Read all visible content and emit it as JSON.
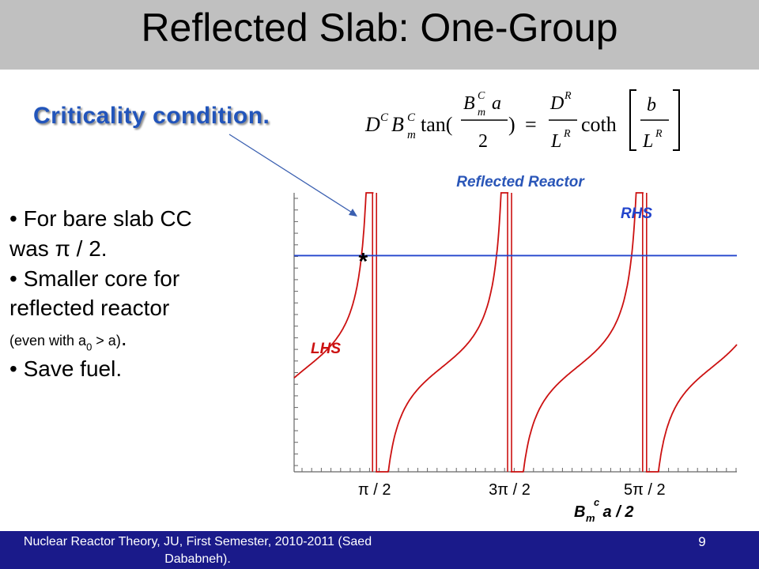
{
  "slide": {
    "title": "Reflected Slab: One-Group",
    "criticality_label": "Criticality condition.",
    "bullets": {
      "b1_line1": "• For bare slab CC",
      "b1_line2": "was π / 2.",
      "b2_line1": "• Smaller core for",
      "b2_line2": "reflected reactor",
      "b2_note_pre": "(even with a",
      "b2_note_sub": "0",
      "b2_note_post": " > a)",
      "b2_note_dot": ".",
      "b3": "• Save fuel."
    },
    "footer_text": "Nuclear Reactor Theory, JU, First Semester, 2010-2011 (Saed Dababneh).",
    "page_number": "9",
    "title_bar_color": "#c0c0c0",
    "footer_color": "#1a1a8a"
  },
  "equation": {
    "D": "D",
    "B": "B",
    "sup_C": "C",
    "sub_m": "m",
    "a": "a",
    "two": "2",
    "tan": "tan(",
    "close_paren": ")",
    "equals": "=",
    "sup_R": "R",
    "L": "L",
    "coth": "coth",
    "b": "b"
  },
  "chart_data": {
    "type": "line",
    "title": "Reflected Reactor",
    "xlabel": "B",
    "xlabel_sup": "c",
    "xlabel_sub": "m",
    "xlabel_rest": " a / 2",
    "x_ticks": [
      "π / 2",
      "3π / 2",
      "5π / 2"
    ],
    "x_tick_values": [
      1.5708,
      4.7124,
      7.854
    ],
    "xlim": [
      -0.3,
      10.0
    ],
    "ylim": [
      -3.0,
      5.0
    ],
    "series": [
      {
        "name": "LHS",
        "function": "tan(x)",
        "color": "#cc1111"
      },
      {
        "name": "RHS",
        "constant": 3.2,
        "color": "#2244cc"
      }
    ],
    "asymptotes": [
      1.5708,
      4.7124,
      7.854
    ],
    "annotation": {
      "symbol": "*",
      "x": 1.27,
      "y": 3.2
    },
    "grid": false
  }
}
